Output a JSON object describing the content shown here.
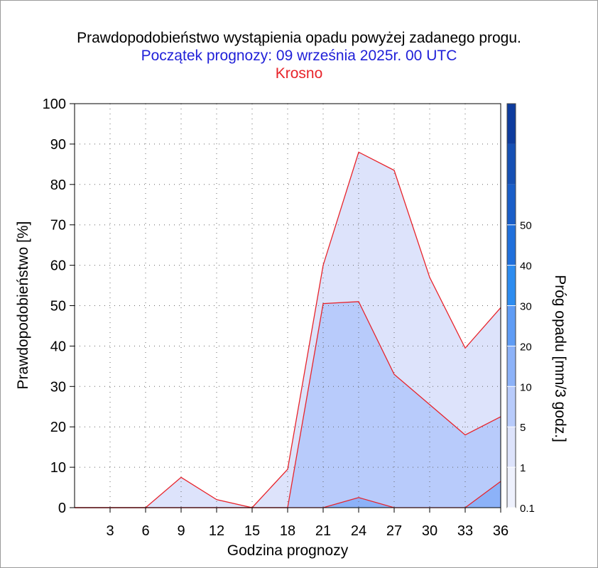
{
  "chart_data": {
    "type": "area",
    "title": "Prawdopodobieństwo wystąpienia opadu powyżej zadanego progu.",
    "subtitle": "Początek prognozy: 09 września 2025r. 00 UTC",
    "location": "Krosno",
    "xlabel": "Godzina prognozy",
    "ylabel": "Prawdopodobieństwo [%]",
    "x": [
      0,
      3,
      6,
      9,
      12,
      15,
      18,
      21,
      24,
      27,
      30,
      33,
      36
    ],
    "x_tick_labels": [
      "3",
      "6",
      "9",
      "12",
      "15",
      "18",
      "21",
      "24",
      "27",
      "30",
      "33",
      "36"
    ],
    "y_tick_labels": [
      "0",
      "10",
      "20",
      "30",
      "40",
      "50",
      "60",
      "70",
      "80",
      "90",
      "100"
    ],
    "xlim": [
      0,
      36
    ],
    "ylim": [
      0,
      100
    ],
    "grid": "dotted",
    "series": [
      {
        "threshold": 0.1,
        "color": "#dde3fb",
        "values": [
          0,
          0,
          0,
          7.5,
          2,
          0,
          9.5,
          60,
          88,
          83.5,
          57,
          39.5,
          49.5
        ]
      },
      {
        "threshold": 1,
        "color": "#b8cbfb",
        "values": [
          0,
          0,
          0,
          0,
          0,
          0,
          0,
          50.5,
          51,
          33,
          25.5,
          18,
          22.5
        ]
      },
      {
        "threshold": 5,
        "color": "#8cb2f8",
        "values": [
          0,
          0,
          0,
          0,
          0,
          0,
          0,
          0,
          2.5,
          0,
          0,
          0,
          6.5
        ]
      }
    ],
    "colorbar": {
      "label": "Próg opadu [mm/3 godz.]",
      "tick_labels": [
        "0.1",
        "1",
        "5",
        "10",
        "20",
        "30",
        "40",
        "50"
      ],
      "colors": [
        "#eef1fd",
        "#dde3fb",
        "#b8cbfb",
        "#8cb2f8",
        "#5f9cf5",
        "#2d8cf0",
        "#2070dc",
        "#1a5ec8",
        "#1650b4",
        "#0e3c9e"
      ]
    }
  }
}
